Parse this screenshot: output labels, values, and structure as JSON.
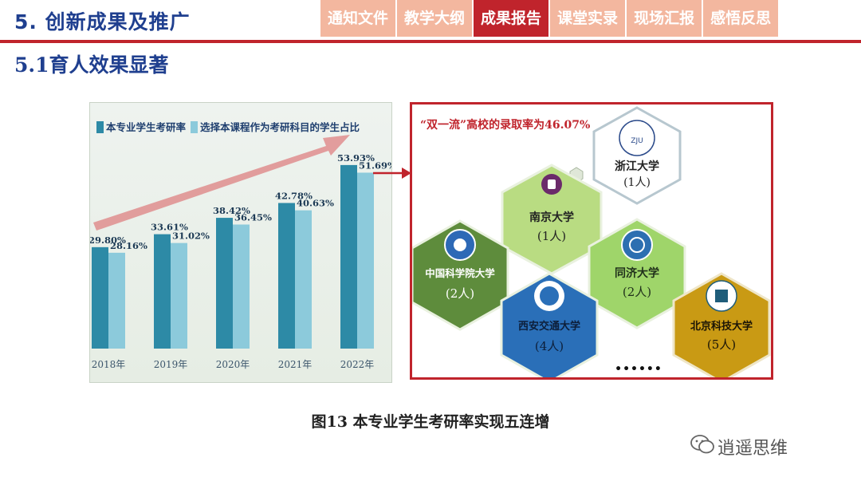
{
  "header": {
    "section_title": "5. 创新成果及推广",
    "tabs": [
      "通知文件",
      "教学大纲",
      "成果报告",
      "课堂实录",
      "现场汇报",
      "感悟反思"
    ],
    "active_tab": "成果报告"
  },
  "subtitle": "5.1育人效果显著",
  "chart_data": {
    "type": "bar",
    "categories": [
      "2018年",
      "2019年",
      "2020年",
      "2021年",
      "2022年"
    ],
    "series": [
      {
        "name": "本专业学生考研率",
        "values": [
          29.8,
          33.61,
          38.42,
          42.78,
          53.93
        ],
        "labels": [
          "29.80%",
          "33.61%",
          "38.42%",
          "42.78%",
          "53.93%"
        ],
        "color": "#2d8aa6"
      },
      {
        "name": "选择本课程作为考研科目的学生占比",
        "values": [
          28.16,
          31.02,
          36.45,
          40.63,
          51.69
        ],
        "labels": [
          "28.16%",
          "31.02%",
          "36.45%",
          "40.63%",
          "51.69%"
        ],
        "color": "#8ccadb"
      }
    ],
    "ylim": [
      0,
      60
    ],
    "legend_position": "top-left",
    "grid": false
  },
  "universities_panel": {
    "headline": "“双一流”高校的录取率为46.07%",
    "items": [
      {
        "name": "浙江大学",
        "count": "(1人)",
        "color": "#ffffff"
      },
      {
        "name": "南京大学",
        "count": "(1人)",
        "color": "#b9dc82"
      },
      {
        "name": "中国科学院大学",
        "count": "(2人)",
        "color": "#5e8c3c"
      },
      {
        "name": "同济大学",
        "count": "(2人)",
        "color": "#9fd56a"
      },
      {
        "name": "西安交通大学",
        "count": "(4人)",
        "color": "#2a6fb8"
      },
      {
        "name": "北京科技大学",
        "count": "(5人)",
        "color": "#c99a14"
      }
    ],
    "more": "••••••"
  },
  "caption": "图13 本专业学生考研率实现五连增",
  "watermark": "逍遥思维",
  "colors": {
    "accent": "#c0242c",
    "tab_bg": "#f3b79f",
    "title_blue": "#1f3f8f"
  }
}
